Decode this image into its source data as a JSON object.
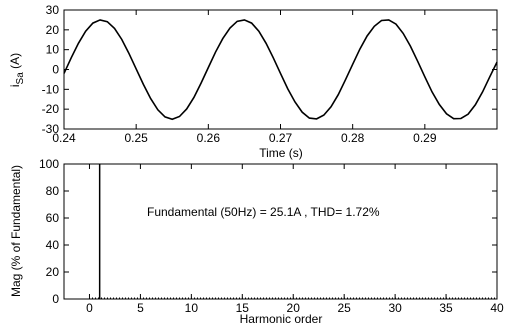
{
  "chart_data": [
    {
      "type": "line",
      "xlabel": "Time (s)",
      "ylabel": "i",
      "ylabel_sub": "Sa",
      "ylabel_unit": " (A)",
      "xlim": [
        0.24,
        0.3
      ],
      "ylim": [
        -30,
        30
      ],
      "xticks": [
        0.24,
        0.25,
        0.26,
        0.27,
        0.28,
        0.29
      ],
      "xtick_labels": [
        "0.24",
        "0.25",
        "0.26",
        "0.27",
        "0.28",
        "0.29"
      ],
      "yticks": [
        -30,
        -20,
        -10,
        0,
        10,
        20,
        30
      ],
      "ytick_labels": [
        "-30",
        "-20",
        "-10",
        "0",
        "10",
        "20",
        "30"
      ],
      "grid": false,
      "series": [
        {
          "color": "#000000",
          "frequency_hz": 50,
          "amplitude": 25.1,
          "x": [
            0.24,
            0.241,
            0.242,
            0.243,
            0.244,
            0.245,
            0.246,
            0.247,
            0.248,
            0.249,
            0.25,
            0.251,
            0.252,
            0.253,
            0.254,
            0.255,
            0.256,
            0.257,
            0.258,
            0.259,
            0.26,
            0.261,
            0.262,
            0.263,
            0.264,
            0.265,
            0.266,
            0.267,
            0.268,
            0.269,
            0.27,
            0.271,
            0.272,
            0.273,
            0.274,
            0.275,
            0.276,
            0.277,
            0.278,
            0.279,
            0.28,
            0.281,
            0.282,
            0.283,
            0.284,
            0.285,
            0.286,
            0.287,
            0.288,
            0.289,
            0.29,
            0.291,
            0.292,
            0.293,
            0.294,
            0.295,
            0.296,
            0.297,
            0.298,
            0.299,
            0.3
          ],
          "y": [
            -2,
            5.9,
            13.2,
            19.3,
            23.4,
            25.0,
            24.1,
            20.7,
            15.2,
            8.1,
            0.3,
            -7.5,
            -14.6,
            -20.3,
            -23.9,
            -25.1,
            -23.7,
            -19.9,
            -14.1,
            -6.8,
            1.0,
            8.8,
            15.6,
            20.9,
            24.3,
            25.0,
            23.4,
            19.3,
            13.2,
            5.9,
            -2.0,
            -9.7,
            -16.3,
            -21.5,
            -24.5,
            -24.9,
            -23.0,
            -18.8,
            -12.7,
            -5.2,
            2.6,
            10.3,
            16.9,
            21.8,
            24.7,
            25.0,
            22.9,
            18.2,
            11.8,
            4.2,
            -3.7,
            -11.3,
            -17.6,
            -22.3,
            -24.8,
            -24.7,
            -22.5,
            -17.8,
            -11.3,
            -3.7,
            3.7
          ]
        }
      ]
    },
    {
      "type": "bar",
      "xlabel": "Harmonic order",
      "ylabel": "Mag (% of Fundamental)",
      "xlim": [
        -2.5,
        40
      ],
      "ylim": [
        0,
        100
      ],
      "xticks": [
        0,
        5,
        10,
        15,
        20,
        25,
        30,
        35,
        40
      ],
      "xtick_labels": [
        "0",
        "5",
        "10",
        "15",
        "20",
        "25",
        "30",
        "35",
        "40"
      ],
      "yticks": [
        0,
        20,
        40,
        60,
        80,
        100
      ],
      "ytick_labels": [
        "0",
        "20",
        "40",
        "60",
        "80",
        "100"
      ],
      "grid": false,
      "annotation": "Fundamental (50Hz) = 25.1A , THD= 1.72%",
      "categories": [
        1
      ],
      "values": [
        100
      ]
    }
  ]
}
